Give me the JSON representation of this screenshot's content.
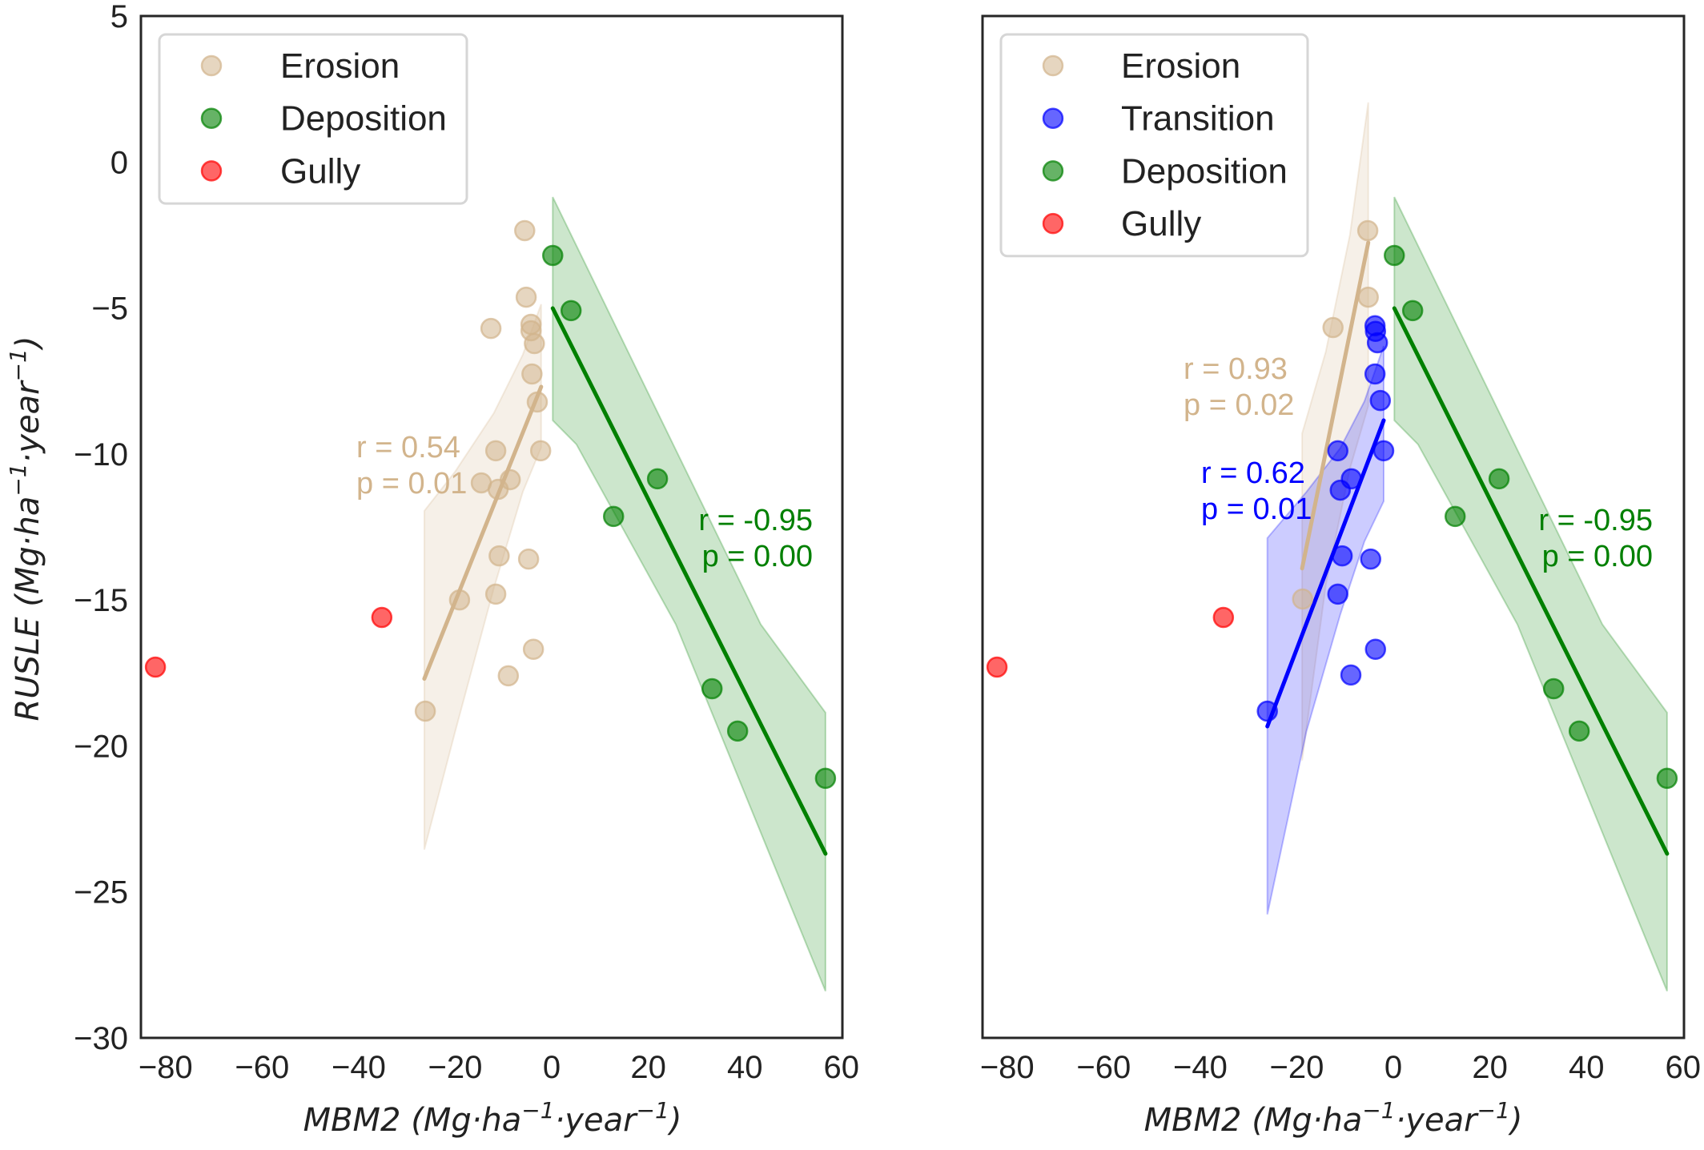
{
  "chart_data": [
    {
      "type": "scatter",
      "panel": "left",
      "title": "",
      "xlabel": "MBM2 (Mg·ha⁻¹·year⁻¹)",
      "ylabel": "RUSLE (Mg·ha⁻¹·year⁻¹)",
      "xlim": [
        -85.1,
        60.2
      ],
      "ylim": [
        -30,
        5
      ],
      "xticks": [
        -80,
        -60,
        -40,
        -20,
        0,
        20,
        40,
        60
      ],
      "yticks": [
        5,
        0,
        -5,
        -10,
        -15,
        -20,
        -25,
        -30
      ],
      "xtick_labels": [
        "−80",
        "−60",
        "−40",
        "−20",
        "0",
        "20",
        "40",
        "60"
      ],
      "ytick_labels": [
        "5",
        "0",
        "−5",
        "−10",
        "−15",
        "−20",
        "−25",
        "−30"
      ],
      "grid": false,
      "legend_position": "top-left",
      "legend": [
        {
          "label": "Erosion",
          "color": "#d2b48c"
        },
        {
          "label": "Deposition",
          "color": "#008000"
        },
        {
          "label": "Gully",
          "color": "#ff0000"
        }
      ],
      "series": [
        {
          "name": "Erosion",
          "color": "#d2b48c",
          "points": [
            [
              -5.6,
              -2.35
            ],
            [
              -5.3,
              -4.63
            ],
            [
              -12.6,
              -5.7
            ],
            [
              -4.3,
              -5.56
            ],
            [
              -4.3,
              -5.78
            ],
            [
              -3.6,
              -6.22
            ],
            [
              -4.1,
              -7.26
            ],
            [
              -3.0,
              -8.22
            ],
            [
              -11.6,
              -9.89
            ],
            [
              -2.3,
              -9.89
            ],
            [
              -14.6,
              -10.99
            ],
            [
              -8.6,
              -10.88
            ],
            [
              -11.1,
              -11.21
            ],
            [
              -10.9,
              -13.49
            ],
            [
              -4.8,
              -13.6
            ],
            [
              -19.1,
              -15.0
            ],
            [
              -11.6,
              -14.8
            ],
            [
              -3.8,
              -16.69
            ],
            [
              -9.0,
              -17.6
            ],
            [
              -26.2,
              -18.81
            ]
          ],
          "fit_line": [
            [
              -26.4,
              -17.7
            ],
            [
              -2.2,
              -7.7
            ]
          ],
          "ci_band": {
            "upper": [
              [
                -26.4,
                -11.95
              ],
              [
                -20,
                -10.6
              ],
              [
                -12,
                -8.6
              ],
              [
                -6,
                -6.6
              ],
              [
                -2.2,
                -4.87
              ]
            ],
            "lower": [
              [
                -26.4,
                -23.55
              ],
              [
                -20,
                -19.5
              ],
              [
                -12,
                -14.6
              ],
              [
                -6,
                -11.3
              ],
              [
                -2.2,
                -9.78
              ]
            ]
          },
          "annotation": {
            "r": "r = 0.54",
            "p": "p = 0.01"
          }
        },
        {
          "name": "Deposition",
          "color": "#008000",
          "points": [
            [
              0.2,
              -3.2
            ],
            [
              4.0,
              -5.09
            ],
            [
              21.9,
              -10.85
            ],
            [
              12.8,
              -12.14
            ],
            [
              33.2,
              -18.04
            ],
            [
              38.5,
              -19.49
            ],
            [
              56.7,
              -21.11
            ]
          ],
          "fit_line": [
            [
              0.2,
              -5.01
            ],
            [
              56.7,
              -23.69
            ]
          ],
          "ci_band": {
            "upper": [
              [
                0.2,
                -1.2
              ],
              [
                43.3,
                -15.84
              ],
              [
                56.7,
                -18.86
              ]
            ],
            "lower": [
              [
                0.2,
                -8.85
              ],
              [
                5.1,
                -9.67
              ],
              [
                25.7,
                -15.84
              ],
              [
                56.7,
                -28.4
              ]
            ]
          },
          "annotation": {
            "r": "r = -0.95",
            "p": "p = 0.00"
          }
        },
        {
          "name": "Gully",
          "color": "#ff0000",
          "points": [
            [
              -82.1,
              -17.3
            ],
            [
              -35.2,
              -15.6
            ]
          ]
        }
      ]
    },
    {
      "type": "scatter",
      "panel": "right",
      "title": "",
      "xlabel": "MBM2 (Mg·ha⁻¹·year⁻¹)",
      "ylabel": "",
      "xlim": [
        -85.1,
        60.2
      ],
      "ylim": [
        -30,
        5
      ],
      "xticks": [
        -80,
        -60,
        -40,
        -20,
        0,
        20,
        40,
        60
      ],
      "xtick_labels": [
        "−80",
        "−60",
        "−40",
        "−20",
        "0",
        "20",
        "40",
        "60"
      ],
      "grid": false,
      "legend_position": "top-left",
      "legend": [
        {
          "label": "Erosion",
          "color": "#d2b48c"
        },
        {
          "label": "Transition",
          "color": "#0000ff"
        },
        {
          "label": "Deposition",
          "color": "#008000"
        },
        {
          "label": "Gully",
          "color": "#ff0000"
        }
      ],
      "series": [
        {
          "name": "Erosion",
          "color": "#d2b48c",
          "points": [
            [
              -5.3,
              -2.35
            ],
            [
              -5.2,
              -4.63
            ],
            [
              -12.5,
              -5.67
            ],
            [
              -18.8,
              -14.97
            ]
          ],
          "fit_line": [
            [
              -18.9,
              -13.92
            ],
            [
              -5.2,
              -2.76
            ]
          ],
          "ci_band": {
            "upper": [
              [
                -18.9,
                -9.3
              ],
              [
                -14,
                -6.5
              ],
              [
                -9,
                -2.5
              ],
              [
                -5.2,
                2.04
              ]
            ],
            "lower": [
              [
                -18.9,
                -20.5
              ],
              [
                -14,
                -14.5
              ],
              [
                -9,
                -10.5
              ],
              [
                -5.2,
                -8.36
              ]
            ]
          },
          "annotation": {
            "r": "r = 0.93",
            "p": "p = 0.02"
          }
        },
        {
          "name": "Transition",
          "color": "#0000ff",
          "points": [
            [
              -3.8,
              -5.61
            ],
            [
              -3.7,
              -5.8
            ],
            [
              -3.3,
              -6.19
            ],
            [
              -3.8,
              -7.26
            ],
            [
              -2.7,
              -8.17
            ],
            [
              -11.5,
              -9.89
            ],
            [
              -2.0,
              -9.89
            ],
            [
              -8.7,
              -10.85
            ],
            [
              -11.0,
              -11.24
            ],
            [
              -10.6,
              -13.49
            ],
            [
              -4.7,
              -13.6
            ],
            [
              -11.5,
              -14.8
            ],
            [
              -3.7,
              -16.69
            ],
            [
              -8.8,
              -17.57
            ],
            [
              -26.1,
              -18.81
            ]
          ],
          "fit_line": [
            [
              -26.1,
              -19.33
            ],
            [
              -2.0,
              -8.85
            ]
          ],
          "ci_band": {
            "upper": [
              [
                -26.1,
                -12.88
              ],
              [
                -18,
                -11.3
              ],
              [
                -11,
                -9.8
              ],
              [
                -6,
                -8.2
              ],
              [
                -2.0,
                -6.3
              ]
            ],
            "lower": [
              [
                -26.1,
                -25.77
              ],
              [
                -18,
                -19.5
              ],
              [
                -11,
                -15.5
              ],
              [
                -6,
                -13.0
              ],
              [
                -2.0,
                -11.62
              ]
            ]
          },
          "annotation": {
            "r": "r = 0.62",
            "p": "p = 0.01"
          }
        },
        {
          "name": "Deposition",
          "color": "#008000",
          "points": [
            [
              0.2,
              -3.2
            ],
            [
              4.0,
              -5.09
            ],
            [
              21.9,
              -10.85
            ],
            [
              12.8,
              -12.14
            ],
            [
              33.2,
              -18.04
            ],
            [
              38.5,
              -19.49
            ],
            [
              56.7,
              -21.11
            ]
          ],
          "fit_line": [
            [
              0.2,
              -5.01
            ],
            [
              56.7,
              -23.69
            ]
          ],
          "ci_band": {
            "upper": [
              [
                0.2,
                -1.2
              ],
              [
                43.3,
                -15.84
              ],
              [
                56.7,
                -18.86
              ]
            ],
            "lower": [
              [
                0.2,
                -8.85
              ],
              [
                5.1,
                -9.67
              ],
              [
                25.7,
                -15.84
              ],
              [
                56.7,
                -28.4
              ]
            ]
          },
          "annotation": {
            "r": "r = -0.95",
            "p": "p = 0.00"
          }
        },
        {
          "name": "Gully",
          "color": "#ff0000",
          "points": [
            [
              -82.1,
              -17.3
            ],
            [
              -35.2,
              -15.6
            ]
          ]
        }
      ]
    }
  ],
  "labels": {
    "ylabel_main": "RUSLE (Mg·ha",
    "ylabel_sup1": "−1",
    "ylabel_mid": "·year",
    "ylabel_sup2": "−1",
    "ylabel_end": ")",
    "xlabel_main": "MBM2 (Mg·ha",
    "xlabel_sup1": "−1",
    "xlabel_mid": "·year",
    "xlabel_sup2": "−1",
    "xlabel_end": ")"
  }
}
